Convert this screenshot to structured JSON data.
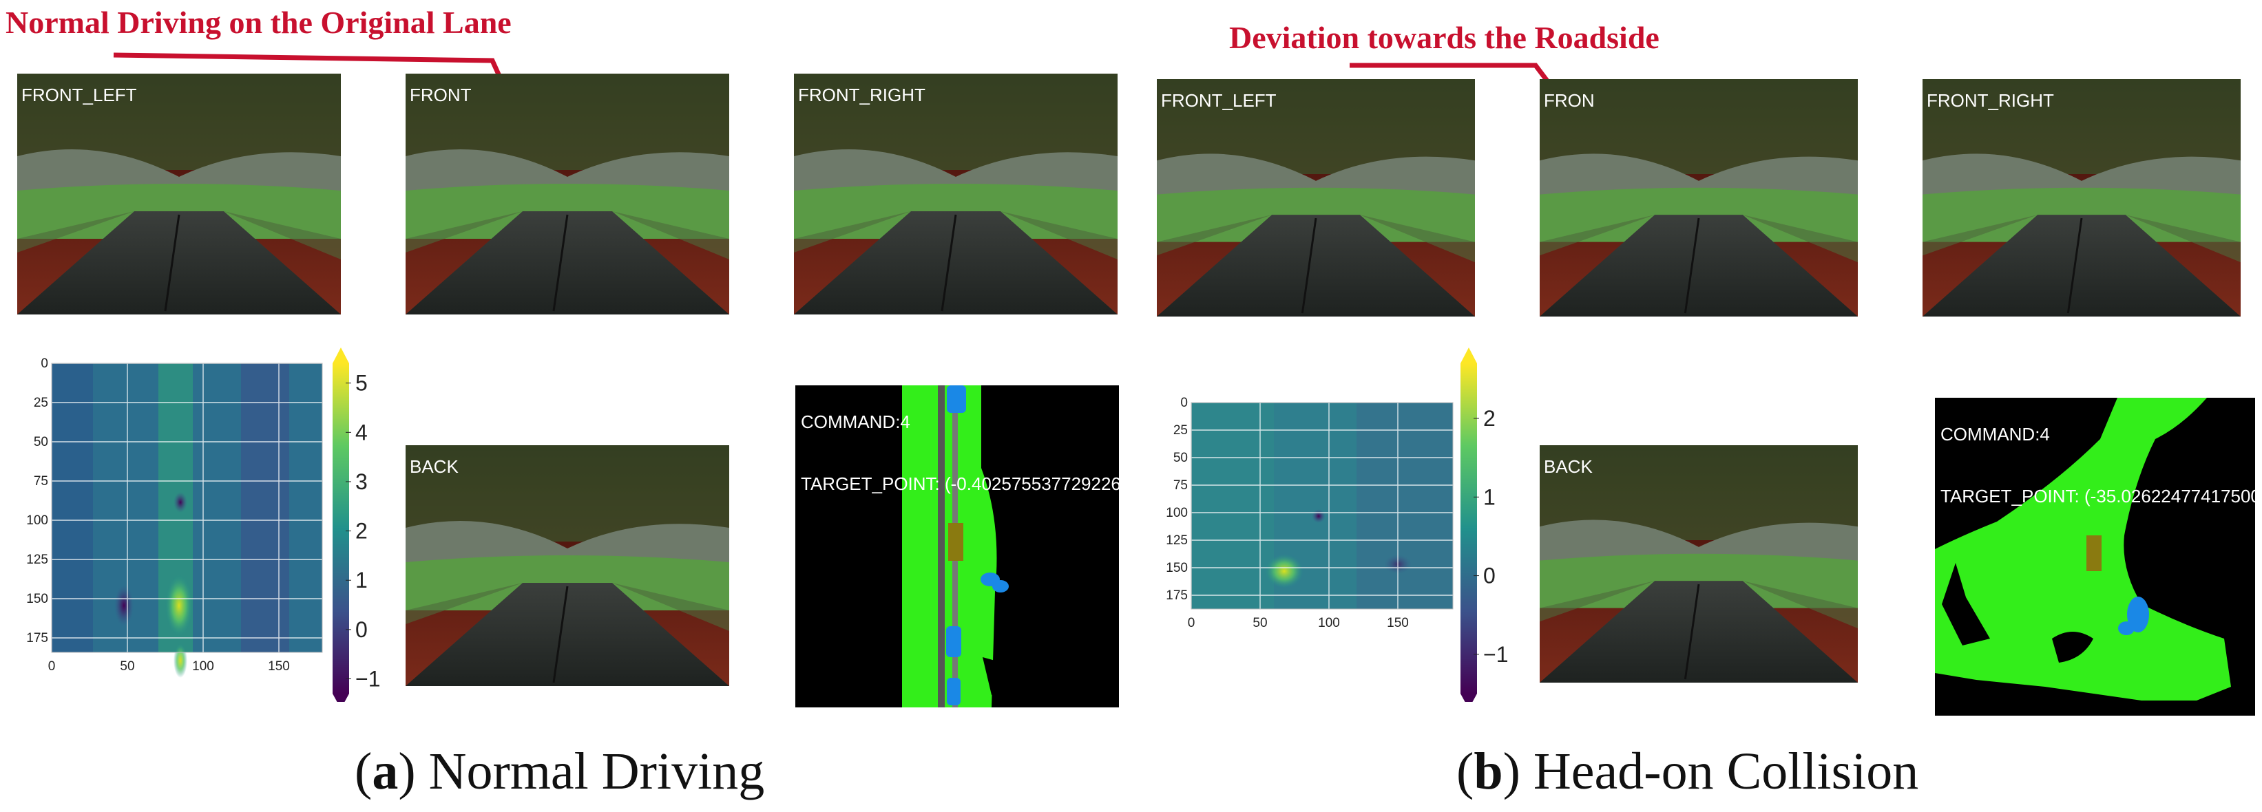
{
  "panel_a": {
    "annotation": "Normal Driving on the Original Lane",
    "cameras": {
      "front_left": "FRONT_LEFT",
      "front": "FRONT",
      "front_right": "FRONT_RIGHT",
      "back": "BACK"
    },
    "bev": {
      "command": "COMMAND:4",
      "target_point": "TARGET_POINT: (-0.402575537729226"
    },
    "heatmap": {
      "y_ticks": [
        "0",
        "25",
        "50",
        "75",
        "100",
        "125",
        "150",
        "175"
      ],
      "x_ticks": [
        "0",
        "50",
        "100",
        "150"
      ],
      "colorbar_ticks": [
        "5",
        "4",
        "3",
        "2",
        "1",
        "0",
        "−1"
      ],
      "colorbar_range": [
        -1.3,
        5.4
      ]
    },
    "caption_letter": "a",
    "caption_text": " Normal Driving"
  },
  "panel_b": {
    "annotation": "Deviation towards the Roadside",
    "cameras": {
      "front_left": "FRONT_LEFT",
      "front": "FRON",
      "front_right": "FRONT_RIGHT",
      "back": "BACK"
    },
    "bev": {
      "command": "COMMAND:4",
      "target_point": "TARGET_POINT: (-35.02622477417500"
    },
    "heatmap": {
      "y_ticks": [
        "0",
        "25",
        "50",
        "75",
        "100",
        "125",
        "150",
        "175"
      ],
      "x_ticks": [
        "0",
        "50",
        "100",
        "150"
      ],
      "colorbar_ticks": [
        "2",
        "1",
        "0",
        "−1"
      ],
      "colorbar_range": [
        -1.5,
        2.7
      ]
    },
    "caption_letter": "b",
    "caption_text": " Head-on Collision"
  },
  "colors": {
    "annotation_red": "#c8102e",
    "bev_drivable": "#33ee1a",
    "bev_vehicle": "#1a88e6",
    "bev_target": "#8a7a10",
    "sky": "#5a1a12"
  }
}
